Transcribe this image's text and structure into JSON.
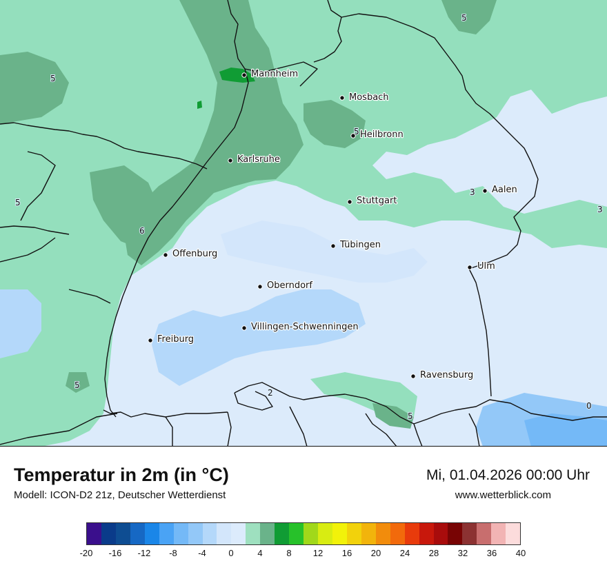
{
  "title": "Temperatur in 2m (in °C)",
  "subtitle": "Modell: ICON-D2 21z, Deutscher Wetterdienst",
  "datetime": "Mi, 01.04.2026 00:00 Uhr",
  "website": "www.wetterblick.com",
  "cities": [
    {
      "name": "Mannheim"
    },
    {
      "name": "Mosbach"
    },
    {
      "name": "Heilbronn"
    },
    {
      "name": "Karlsruhe"
    },
    {
      "name": "Aalen"
    },
    {
      "name": "Stuttgart"
    },
    {
      "name": "Tübingen"
    },
    {
      "name": "Offenburg"
    },
    {
      "name": "Ulm"
    },
    {
      "name": "Oberndorf"
    },
    {
      "name": "Villingen-Schwenningen"
    },
    {
      "name": "Freiburg"
    },
    {
      "name": "Ravensburg"
    }
  ],
  "isoline_labels": [
    "5",
    "5",
    "5",
    "5",
    "3",
    "3",
    "6",
    "5",
    "2",
    "5",
    "0"
  ],
  "legend": {
    "colors": [
      "#3a0f8c",
      "#0a3b8a",
      "#0e4d92",
      "#1668c4",
      "#1a86e8",
      "#4aa3f5",
      "#74b9f7",
      "#93c8f8",
      "#b4d8fa",
      "#d3e6fb",
      "#dcebfc",
      "#9ee0bf",
      "#6ab38a",
      "#109c34",
      "#27c12a",
      "#a1d81a",
      "#d8ec12",
      "#f2f20a",
      "#f2d20c",
      "#f2b40c",
      "#f28c0c",
      "#f26a0c",
      "#e83b0c",
      "#c8180c",
      "#a80c0c",
      "#780404",
      "#8c3232",
      "#c86e6e",
      "#f2b4b4",
      "#fcdcdc"
    ],
    "ticks": [
      "-20",
      "-16",
      "-12",
      "-8",
      "-4",
      "0",
      "4",
      "8",
      "12",
      "16",
      "20",
      "24",
      "28",
      "32",
      "36",
      "40"
    ]
  }
}
